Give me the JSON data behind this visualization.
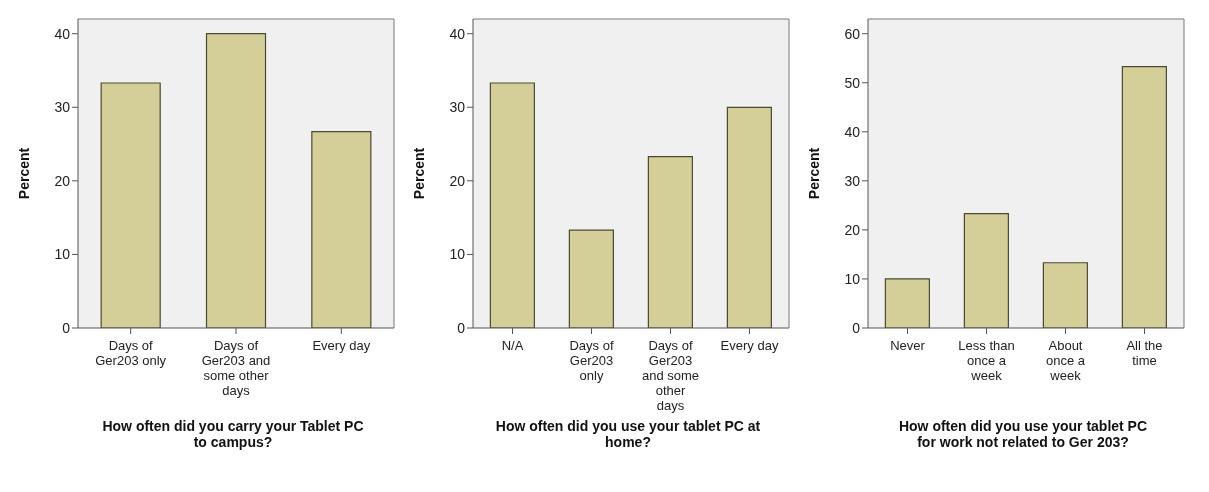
{
  "chart_data": [
    {
      "type": "bar",
      "xlabel": "How often did you carry your Tablet PC to campus?",
      "ylabel": "Percent",
      "categories": [
        "Days of Ger203 only",
        "Days of Ger203 and some other days",
        "Every day"
      ],
      "values": [
        33.3,
        40,
        26.7
      ],
      "color": "#d4cf98",
      "ylim": [
        0,
        42
      ],
      "yticks": [
        0,
        10,
        20,
        30,
        40
      ],
      "grid": false
    },
    {
      "type": "bar",
      "xlabel": "How often did you use your tablet PC at home?",
      "ylabel": "Percent",
      "categories": [
        "N/A",
        "Days of Ger203 only",
        "Days of Ger203 and some other days",
        "Every day"
      ],
      "values": [
        33.3,
        13.3,
        23.3,
        30
      ],
      "color": "#d4cf98",
      "ylim": [
        0,
        42
      ],
      "yticks": [
        0,
        10,
        20,
        30,
        40
      ],
      "grid": false
    },
    {
      "type": "bar",
      "xlabel": "How often did you use your tablet PC for work not related to Ger 203?",
      "ylabel": "Percent",
      "categories": [
        "Never",
        "Less than once a week",
        "About once a week",
        "All the time"
      ],
      "values": [
        10,
        23.3,
        13.3,
        53.3
      ],
      "color": "#d4cf98",
      "ylim": [
        0,
        63
      ],
      "yticks": [
        0,
        10,
        20,
        30,
        40,
        50,
        60
      ],
      "grid": false
    }
  ]
}
